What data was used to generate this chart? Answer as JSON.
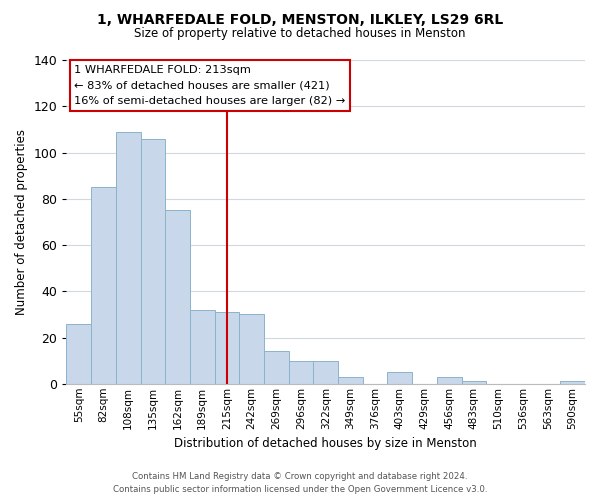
{
  "title": "1, WHARFEDALE FOLD, MENSTON, ILKLEY, LS29 6RL",
  "subtitle": "Size of property relative to detached houses in Menston",
  "xlabel": "Distribution of detached houses by size in Menston",
  "ylabel": "Number of detached properties",
  "bar_color": "#c8d8ea",
  "bar_edge_color": "#8ab4cc",
  "categories": [
    "55sqm",
    "82sqm",
    "108sqm",
    "135sqm",
    "162sqm",
    "189sqm",
    "215sqm",
    "242sqm",
    "269sqm",
    "296sqm",
    "322sqm",
    "349sqm",
    "376sqm",
    "403sqm",
    "429sqm",
    "456sqm",
    "483sqm",
    "510sqm",
    "536sqm",
    "563sqm",
    "590sqm"
  ],
  "values": [
    26,
    85,
    109,
    106,
    75,
    32,
    31,
    30,
    14,
    10,
    10,
    3,
    0,
    5,
    0,
    3,
    1,
    0,
    0,
    0,
    1
  ],
  "vline_index": 6,
  "vline_color": "#cc0000",
  "ylim": [
    0,
    140
  ],
  "yticks": [
    0,
    20,
    40,
    60,
    80,
    100,
    120,
    140
  ],
  "annotation_title": "1 WHARFEDALE FOLD: 213sqm",
  "annotation_line1": "← 83% of detached houses are smaller (421)",
  "annotation_line2": "16% of semi-detached houses are larger (82) →",
  "annotation_box_color": "#ffffff",
  "annotation_box_edge_color": "#cc0000",
  "footer1": "Contains HM Land Registry data © Crown copyright and database right 2024.",
  "footer2": "Contains public sector information licensed under the Open Government Licence v3.0.",
  "background_color": "#ffffff",
  "grid_color": "#d0d8e0"
}
